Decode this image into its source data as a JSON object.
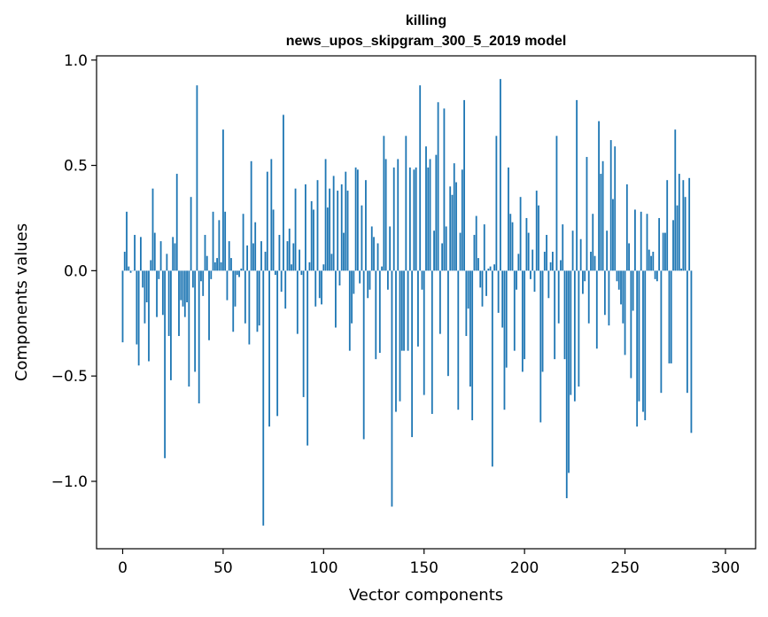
{
  "chart_data": {
    "type": "bar",
    "title_line1": "killing",
    "title_line2": "news_upos_skipgram_300_5_2019 model",
    "xlabel": "Vector components",
    "ylabel": "Components values",
    "xlim": [
      -13,
      315
    ],
    "ylim": [
      -1.32,
      1.02
    ],
    "xticks": [
      0,
      50,
      100,
      150,
      200,
      250,
      300
    ],
    "xtick_labels": [
      "0",
      "50",
      "100",
      "150",
      "200",
      "250",
      "300"
    ],
    "yticks": [
      1.0,
      0.5,
      0.0,
      -0.5,
      -1.0
    ],
    "ytick_labels": [
      "1.0",
      "0.5",
      "0.0",
      "−0.5",
      "−1.0"
    ],
    "bar_color": "#1f77b4",
    "grid": false,
    "values": [
      -0.34,
      0.09,
      0.28,
      0.02,
      -0.01,
      0.0,
      0.17,
      -0.35,
      -0.45,
      0.16,
      -0.08,
      -0.25,
      -0.15,
      -0.43,
      0.05,
      0.39,
      0.18,
      -0.22,
      -0.04,
      0.14,
      -0.21,
      -0.89,
      0.08,
      -0.31,
      -0.52,
      0.16,
      0.13,
      0.46,
      -0.31,
      -0.14,
      -0.17,
      -0.22,
      -0.15,
      -0.55,
      0.35,
      -0.08,
      -0.48,
      0.88,
      -0.63,
      -0.05,
      -0.12,
      0.17,
      0.07,
      -0.33,
      -0.04,
      0.28,
      0.04,
      0.06,
      0.24,
      0.04,
      0.67,
      0.28,
      -0.14,
      0.14,
      0.06,
      -0.29,
      -0.17,
      -0.02,
      -0.03,
      0.01,
      0.27,
      -0.25,
      0.12,
      -0.35,
      0.52,
      0.13,
      0.23,
      -0.29,
      -0.26,
      0.14,
      -1.21,
      0.09,
      0.47,
      -0.74,
      0.53,
      0.29,
      -0.02,
      -0.69,
      0.17,
      -0.1,
      0.74,
      -0.18,
      0.14,
      0.2,
      0.03,
      0.13,
      0.39,
      -0.3,
      0.1,
      -0.02,
      -0.6,
      0.41,
      -0.83,
      0.04,
      0.33,
      0.29,
      -0.17,
      0.43,
      -0.13,
      -0.16,
      0.03,
      0.53,
      0.3,
      0.39,
      0.08,
      0.45,
      -0.27,
      0.38,
      -0.07,
      0.41,
      0.18,
      0.47,
      0.38,
      -0.38,
      -0.25,
      -0.11,
      0.49,
      0.48,
      -0.06,
      0.31,
      -0.8,
      0.43,
      -0.13,
      -0.09,
      0.21,
      0.16,
      -0.42,
      0.13,
      -0.39,
      0.02,
      0.64,
      0.53,
      -0.09,
      0.21,
      -1.12,
      0.49,
      -0.67,
      0.53,
      -0.62,
      -0.38,
      -0.38,
      0.64,
      -0.38,
      0.49,
      -0.79,
      0.48,
      0.49,
      -0.36,
      0.88,
      -0.09,
      -0.59,
      0.59,
      0.49,
      0.53,
      -0.68,
      0.19,
      0.55,
      0.8,
      -0.3,
      0.13,
      0.77,
      0.21,
      -0.5,
      0.4,
      0.36,
      0.51,
      0.42,
      -0.66,
      0.18,
      0.48,
      0.81,
      -0.31,
      -0.18,
      -0.55,
      -0.71,
      0.17,
      0.26,
      0.06,
      -0.08,
      -0.17,
      0.22,
      -0.12,
      0.01,
      0.02,
      -0.93,
      0.03,
      0.64,
      -0.2,
      0.91,
      -0.27,
      -0.66,
      -0.46,
      0.49,
      0.27,
      0.23,
      -0.38,
      -0.09,
      0.08,
      0.35,
      -0.48,
      -0.42,
      0.25,
      0.18,
      -0.04,
      0.1,
      -0.1,
      0.38,
      0.31,
      -0.72,
      -0.48,
      0.09,
      0.17,
      -0.13,
      0.04,
      0.09,
      -0.42,
      0.64,
      -0.25,
      0.05,
      0.22,
      -0.42,
      -1.08,
      -0.96,
      -0.59,
      0.19,
      -0.62,
      0.81,
      -0.55,
      0.15,
      -0.11,
      -0.05,
      0.54,
      -0.25,
      0.09,
      0.27,
      0.07,
      -0.37,
      0.71,
      0.46,
      0.52,
      -0.21,
      0.19,
      -0.26,
      0.62,
      0.34,
      0.59,
      -0.05,
      -0.09,
      -0.16,
      -0.25,
      -0.4,
      0.41,
      0.13,
      -0.51,
      -0.19,
      0.29,
      -0.74,
      -0.62,
      0.28,
      -0.67,
      -0.71,
      0.27,
      0.1,
      0.07,
      0.09,
      -0.04,
      -0.05,
      0.25,
      -0.58,
      0.18,
      0.18,
      0.43,
      -0.44,
      -0.44,
      0.24,
      0.67,
      0.31,
      0.46,
      0.01,
      0.43,
      0.35,
      -0.58,
      0.44,
      -0.77
    ]
  }
}
